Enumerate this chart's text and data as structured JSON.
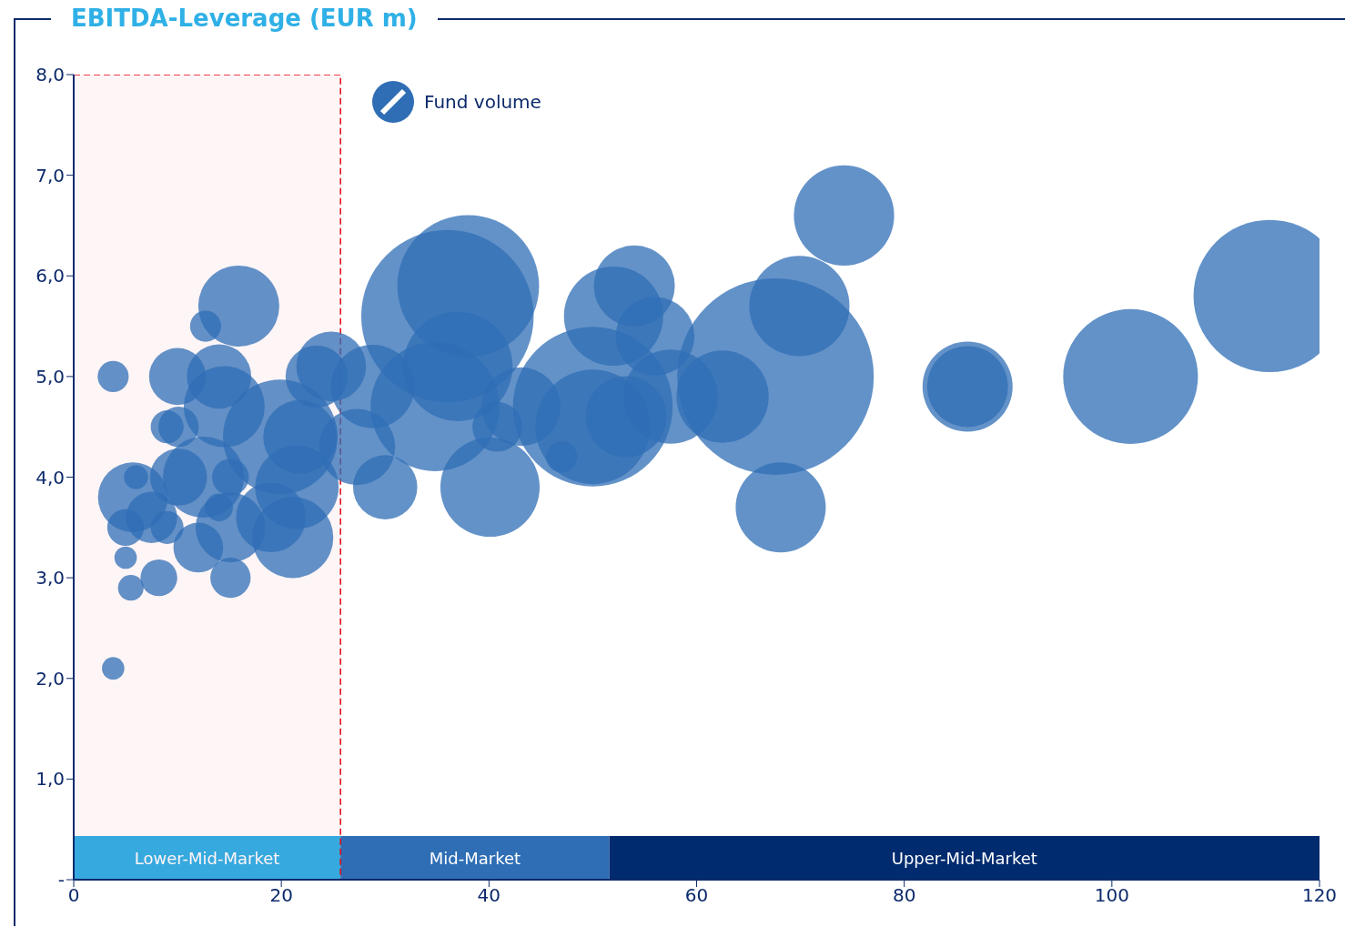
{
  "chart_data": {
    "type": "bubble",
    "title": "EBITDA-Leverage (EUR m)",
    "xlim": [
      0,
      120
    ],
    "xticks": [
      0,
      20,
      40,
      60,
      80,
      100,
      120
    ],
    "ylim": [
      0,
      8
    ],
    "yticks": [
      {
        "value": 0,
        "label": "-"
      },
      {
        "value": 1,
        "label": "1,0"
      },
      {
        "value": 2,
        "label": "2,0"
      },
      {
        "value": 3,
        "label": "3,0"
      },
      {
        "value": 4,
        "label": "4,0"
      },
      {
        "value": 5,
        "label": "5,0"
      },
      {
        "value": 6,
        "label": "6,0"
      },
      {
        "value": 7,
        "label": "7,0"
      },
      {
        "value": 8,
        "label": "8,0"
      }
    ],
    "legend": "top",
    "bands": [
      {
        "axis": "x",
        "from": 0,
        "to": 25.7,
        "label": "Lower-Mid-Market",
        "color": "#2fb0e6"
      },
      {
        "axis": "x",
        "from": 25.7,
        "to": 51.6,
        "label": "Mid-Market",
        "color": "#2f6eb5"
      },
      {
        "axis": "x",
        "from": 51.6,
        "to": 120,
        "label": "Upper-Mid-Market",
        "color": "#002b6e"
      },
      {
        "axis": "x",
        "from": 0,
        "to": 25.7,
        "color": "#e30613"
      }
    ],
    "series": [
      {
        "name": "Fund volume",
        "color": "#2f6eb5",
        "x": [
          15.9,
          12.7,
          3.8,
          10.0,
          14.0,
          14.5,
          9.0,
          10.1,
          5.7,
          6.0,
          10.1,
          12.5,
          15.1,
          7.5,
          5.0,
          9.0,
          14.0,
          15.1,
          12.0,
          19.0,
          21.1,
          5.0,
          8.2,
          5.5,
          15.1,
          3.8,
          19.9,
          21.5,
          24.8,
          23.4,
          21.8,
          36.0,
          38.0,
          34.8,
          37.0,
          28.8,
          27.3,
          30.0,
          40.1,
          40.8,
          43.1,
          50.0,
          50.0,
          47.0,
          52.0,
          54.0,
          56.0,
          53.2,
          57.5,
          74.2,
          69.9,
          67.6,
          62.5,
          68.1,
          86.1,
          86.1,
          101.8,
          115.2
        ],
        "values": [
          5.7,
          5.5,
          5.0,
          5.0,
          5.0,
          4.7,
          4.5,
          4.5,
          3.8,
          4.0,
          4.0,
          4.0,
          4.0,
          3.6,
          3.5,
          3.5,
          3.7,
          3.5,
          3.3,
          3.6,
          3.4,
          3.2,
          3.0,
          2.9,
          3.0,
          2.1,
          4.4,
          3.9,
          5.1,
          5.0,
          4.4,
          5.6,
          5.9,
          4.7,
          5.1,
          4.9,
          4.3,
          3.9,
          3.9,
          4.5,
          4.7,
          4.7,
          4.5,
          4.2,
          5.6,
          5.9,
          5.4,
          4.6,
          4.8,
          6.6,
          5.7,
          5.0,
          4.8,
          3.7,
          4.9,
          4.9,
          5.0,
          5.8
        ],
        "sizes": [
          0.17,
          0.025,
          0.025,
          0.084,
          0.107,
          0.17,
          0.028,
          0.042,
          0.126,
          0.015,
          0.084,
          0.17,
          0.035,
          0.068,
          0.035,
          0.028,
          0.02,
          0.126,
          0.064,
          0.126,
          0.17,
          0.013,
          0.035,
          0.017,
          0.042,
          0.013,
          0.34,
          0.18,
          0.126,
          0.1,
          0.14,
          0.77,
          0.52,
          0.43,
          0.31,
          0.18,
          0.15,
          0.107,
          0.255,
          0.064,
          0.16,
          0.66,
          0.34,
          0.025,
          0.255,
          0.17,
          0.16,
          0.17,
          0.23,
          0.26,
          0.26,
          1.0,
          0.22,
          0.21,
          0.21,
          0.17,
          0.47,
          0.6
        ]
      }
    ]
  }
}
